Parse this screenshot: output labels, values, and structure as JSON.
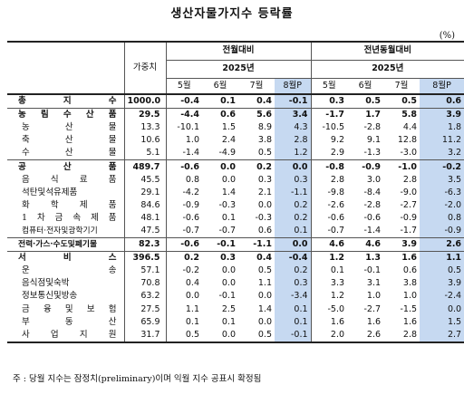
{
  "title": "생산자물가지수 등락률",
  "unit": "(%)",
  "header": {
    "weight_label": "가중치",
    "mom_label": "전월대비",
    "yoy_label": "전년동월대비",
    "year_label": "2025년",
    "months": [
      "5월",
      "6월",
      "7월",
      "8월P"
    ]
  },
  "rows": [
    {
      "label": "총 지 수",
      "weight": "1000.0",
      "mom": [
        "-0.4",
        "0.1",
        "0.4",
        "-0.1"
      ],
      "yoy": [
        "0.3",
        "0.5",
        "0.5",
        "0.6"
      ]
    },
    {
      "label": "농 림 수 산 품",
      "weight": "29.5",
      "mom": [
        "-4.4",
        "0.6",
        "5.6",
        "3.4"
      ],
      "yoy": [
        "-1.7",
        "1.7",
        "5.8",
        "3.9"
      ]
    },
    {
      "label": "농 산 물",
      "weight": "13.3",
      "mom": [
        "-10.1",
        "1.5",
        "8.9",
        "4.3"
      ],
      "yoy": [
        "-10.5",
        "-2.8",
        "4.4",
        "1.8"
      ]
    },
    {
      "label": "축 산 물",
      "weight": "10.6",
      "mom": [
        "1.0",
        "2.4",
        "3.8",
        "2.8"
      ],
      "yoy": [
        "9.2",
        "9.1",
        "12.8",
        "11.2"
      ]
    },
    {
      "label": "수 산 물",
      "weight": "5.1",
      "mom": [
        "-1.4",
        "-4.9",
        "0.5",
        "1.2"
      ],
      "yoy": [
        "2.9",
        "-1.3",
        "-3.0",
        "3.2"
      ]
    },
    {
      "label": "공 산 품",
      "weight": "489.7",
      "mom": [
        "-0.6",
        "0.0",
        "0.2",
        "0.0"
      ],
      "yoy": [
        "-0.8",
        "-0.9",
        "-1.0",
        "-0.2"
      ]
    },
    {
      "label": "음 식 료 품",
      "weight": "45.5",
      "mom": [
        "0.8",
        "0.0",
        "0.3",
        "0.3"
      ],
      "yoy": [
        "2.8",
        "3.0",
        "2.8",
        "3.5"
      ]
    },
    {
      "label": "석탄및석유제품",
      "weight": "29.1",
      "mom": [
        "-4.2",
        "1.4",
        "2.1",
        "-1.1"
      ],
      "yoy": [
        "-9.8",
        "-8.4",
        "-9.0",
        "-6.3"
      ]
    },
    {
      "label": "화 학 제 품",
      "weight": "84.6",
      "mom": [
        "-0.9",
        "-0.3",
        "0.0",
        "0.2"
      ],
      "yoy": [
        "-2.6",
        "-2.8",
        "-2.7",
        "-2.0"
      ]
    },
    {
      "label": "1 차 금 속 제 품",
      "weight": "48.1",
      "mom": [
        "-0.6",
        "0.1",
        "-0.3",
        "0.2"
      ],
      "yoy": [
        "-0.6",
        "-0.6",
        "-0.9",
        "0.8"
      ]
    },
    {
      "label": "컴퓨터·전자및광학기기",
      "weight": "47.5",
      "mom": [
        "-0.7",
        "-0.7",
        "0.6",
        "0.1"
      ],
      "yoy": [
        "-0.7",
        "-1.4",
        "-1.7",
        "-0.9"
      ]
    },
    {
      "label": "전력·가스·수도및폐기물",
      "weight": "82.3",
      "mom": [
        "-0.6",
        "-0.1",
        "-1.1",
        "0.0"
      ],
      "yoy": [
        "4.6",
        "4.6",
        "3.9",
        "2.6"
      ]
    },
    {
      "label": "서 비 스",
      "weight": "396.5",
      "mom": [
        "0.2",
        "0.3",
        "0.4",
        "-0.4"
      ],
      "yoy": [
        "1.2",
        "1.3",
        "1.6",
        "1.1"
      ]
    },
    {
      "label": "운 송",
      "weight": "57.1",
      "mom": [
        "-0.2",
        "0.0",
        "0.5",
        "0.2"
      ],
      "yoy": [
        "0.1",
        "-0.1",
        "0.6",
        "0.5"
      ]
    },
    {
      "label": "음식점및숙박",
      "weight": "70.8",
      "mom": [
        "0.4",
        "0.0",
        "1.1",
        "0.3"
      ],
      "yoy": [
        "3.3",
        "3.1",
        "3.8",
        "3.9"
      ]
    },
    {
      "label": "정보통신및방송",
      "weight": "63.2",
      "mom": [
        "0.0",
        "-0.1",
        "0.0",
        "-3.4"
      ],
      "yoy": [
        "1.2",
        "1.0",
        "1.0",
        "-2.4"
      ]
    },
    {
      "label": "금 융 및 보 험",
      "weight": "27.5",
      "mom": [
        "1.1",
        "2.5",
        "1.4",
        "0.1"
      ],
      "yoy": [
        "-5.0",
        "-2.7",
        "-1.5",
        "0.0"
      ]
    },
    {
      "label": "부 동 산",
      "weight": "65.9",
      "mom": [
        "0.1",
        "0.1",
        "0.0",
        "0.1"
      ],
      "yoy": [
        "1.6",
        "1.6",
        "1.6",
        "1.5"
      ]
    },
    {
      "label": "사 업 지 원",
      "weight": "31.7",
      "mom": [
        "0.5",
        "0.0",
        "0.5",
        "-0.1"
      ],
      "yoy": [
        "2.0",
        "2.6",
        "2.8",
        "2.7"
      ]
    }
  ],
  "footnote": "주 : 당월 지수는 잠정치(preliminary)이며 익월 지수 공표시 확정됨",
  "colors": {
    "highlight": "#c6d9f1"
  }
}
